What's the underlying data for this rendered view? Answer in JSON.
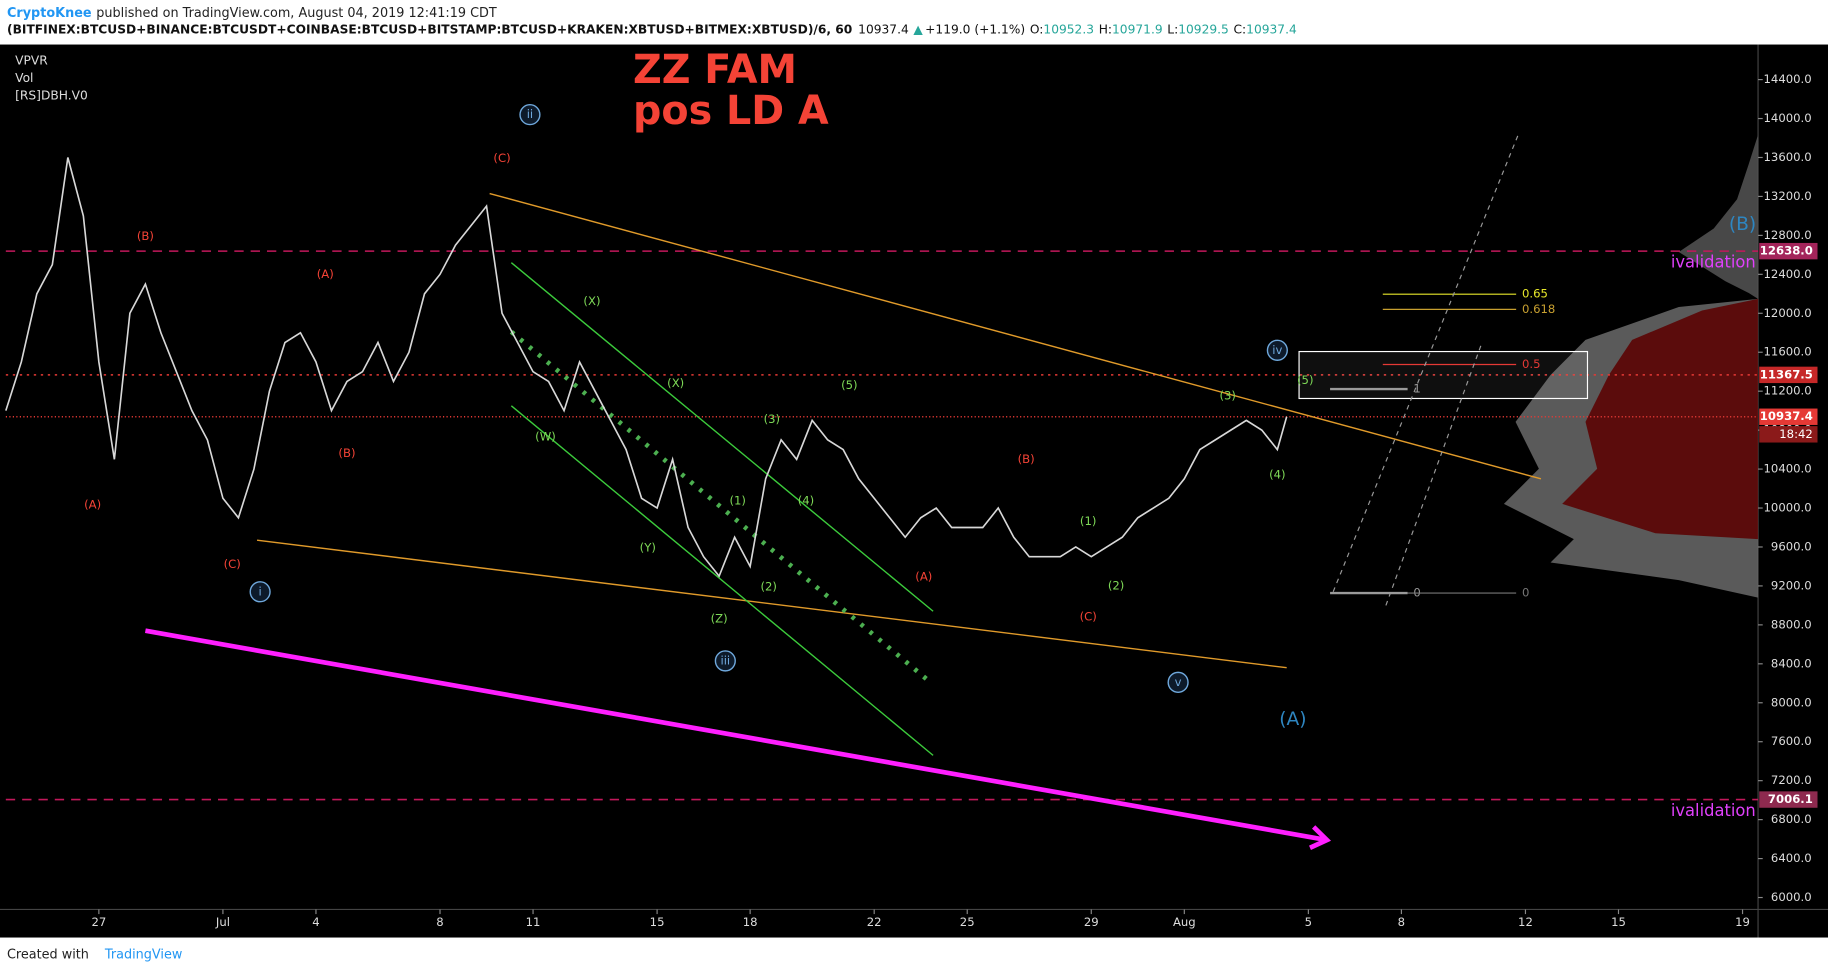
{
  "header": {
    "author": "CryptoKnee",
    "published": "published on TradingView.com, August 04, 2019 12:41:19 CDT",
    "symbol": "(BITFINEX:BTCUSD+BINANCE:BTCUSDT+COINBASE:BTCUSD+BITSTAMP:BTCUSD+KRAKEN:XBTUSD+BITMEX:XBTUSD)/6, 60",
    "last": "10937.4",
    "arrow": "▲",
    "change": "+119.0 (+1.1%)",
    "ohlc": [
      {
        "key": "O:",
        "value": "10952.3"
      },
      {
        "key": "H:",
        "value": "10971.9"
      },
      {
        "key": "L:",
        "value": "10929.5"
      },
      {
        "key": "C:",
        "value": "10937.4"
      }
    ]
  },
  "footer": {
    "created": "Created with",
    "brand": "TradingView"
  },
  "chart_data": {
    "type": "line",
    "title": "ZZ FAM",
    "subtitle": "pos LD A",
    "indicators": [
      "VPVR",
      "Vol",
      "[RS]DBH.V0"
    ],
    "xlim": [
      -6,
      50.5
    ],
    "ylim": [
      5890,
      14760
    ],
    "xticks": [
      {
        "value": -3,
        "label": "27"
      },
      {
        "value": 1,
        "label": "Jul"
      },
      4,
      8,
      11,
      15,
      18,
      22,
      25,
      29,
      {
        "value": 32,
        "label": "Aug"
      },
      {
        "value": 36,
        "label": "5"
      },
      {
        "value": 39,
        "label": "8"
      },
      {
        "value": 43,
        "label": "12"
      },
      {
        "value": 46,
        "label": "15"
      },
      {
        "value": 50,
        "label": "19"
      }
    ],
    "yticks": [
      {
        "value": 6000,
        "label": "6000.0"
      },
      {
        "value": 6400,
        "label": "6400.0"
      },
      {
        "value": 6800,
        "label": "6800.0"
      },
      {
        "value": 7200,
        "label": "7200.0"
      },
      {
        "value": 7600,
        "label": "7600.0"
      },
      {
        "value": 8000,
        "label": "8000.0"
      },
      {
        "value": 8400,
        "label": "8400.0"
      },
      {
        "value": 8800,
        "label": "8800.0"
      },
      {
        "value": 9200,
        "label": "9200.0"
      },
      {
        "value": 9600,
        "label": "9600.0"
      },
      {
        "value": 10000,
        "label": "10000.0"
      },
      {
        "value": 10400,
        "label": "10400.0"
      },
      {
        "value": 10800,
        "label": "10800.0"
      },
      {
        "value": 11200,
        "label": "11200.0"
      },
      {
        "value": 11600,
        "label": "11600.0"
      },
      {
        "value": 12000,
        "label": "12000.0"
      },
      {
        "value": 12400,
        "label": "12400.0"
      },
      {
        "value": 12800,
        "label": "12800.0"
      },
      {
        "value": 13200,
        "label": "13200.0"
      },
      {
        "value": 13600,
        "label": "13600.0"
      },
      {
        "value": 14000,
        "label": "14000.0"
      },
      {
        "value": 14400,
        "label": "14400.0"
      }
    ],
    "x": [
      -6,
      -5.5,
      -5,
      -4.5,
      -4,
      -3.5,
      -3,
      -2.5,
      -2,
      -1.5,
      -1,
      -0.5,
      0,
      0.5,
      1,
      1.5,
      2,
      2.5,
      3,
      3.5,
      4,
      4.5,
      5,
      5.5,
      6,
      6.5,
      7,
      7.5,
      8,
      8.5,
      9,
      9.5,
      10,
      10.5,
      11,
      11.5,
      12,
      12.5,
      13,
      13.5,
      14,
      14.5,
      15,
      15.5,
      16,
      16.5,
      17,
      17.5,
      18,
      18.5,
      19,
      19.5,
      20,
      20.5,
      21,
      21.5,
      22,
      22.5,
      23,
      23.5,
      24,
      24.5,
      25,
      25.5,
      26,
      26.5,
      27,
      27.5,
      28,
      28.5,
      29,
      29.5,
      30,
      30.5,
      31,
      31.5,
      32,
      32.5,
      33,
      33.5,
      34,
      34.5,
      35,
      35.3
    ],
    "series": [
      {
        "color": "#d8d8d8",
        "values": [
          11000,
          11500,
          12200,
          12500,
          13600,
          13000,
          11500,
          10500,
          12000,
          12300,
          11800,
          11400,
          11000,
          10700,
          10100,
          9900,
          10400,
          11200,
          11700,
          11800,
          11500,
          11000,
          11300,
          11400,
          11700,
          11300,
          11600,
          12200,
          12400,
          12700,
          12900,
          13100,
          12000,
          11700,
          11400,
          11300,
          11000,
          11500,
          11200,
          10900,
          10600,
          10100,
          10000,
          10500,
          9800,
          9500,
          9300,
          9700,
          9400,
          10300,
          10700,
          10500,
          10900,
          10700,
          10600,
          10300,
          10100,
          9900,
          9700,
          9900,
          10000,
          9800,
          9800,
          9800,
          10000,
          9700,
          9500,
          9500,
          9500,
          9600,
          9500,
          9600,
          9700,
          9900,
          10000,
          10100,
          10300,
          10600,
          10700,
          10800,
          10900,
          10800,
          10600,
          10937.4
        ]
      }
    ],
    "levels": [
      {
        "value": 12638,
        "label": "12638.0",
        "color": "#c2185b",
        "tag": "#a3245a",
        "dash": "8,6",
        "note": "ivalidation"
      },
      {
        "value": 11367.5,
        "label": "11367.5",
        "color": "#e53935",
        "tag": "#c62828",
        "dash": "2,4"
      },
      {
        "value": 10937.4,
        "label": "10937.4",
        "color": "#e53935",
        "tag": "#e53935",
        "dash": "1,2",
        "countdown": "18:42"
      },
      {
        "value": 7006.1,
        "label": "7006.1",
        "color": "#c2185b",
        "tag": "#8e2a4f",
        "dash": "8,6",
        "note": "ivalidation"
      }
    ],
    "lines": [
      {
        "x": [
          9.6,
          43.5
        ],
        "y": [
          13230,
          10300
        ],
        "color": "#e09a2a",
        "width": 1.2
      },
      {
        "x": [
          2.1,
          35.3
        ],
        "y": [
          9670,
          8360
        ],
        "color": "#e09a2a",
        "width": 1.2
      },
      {
        "x": [
          10.3,
          23.9
        ],
        "y": [
          12520,
          8940
        ],
        "color": "#3ccb3c",
        "width": 1.2
      },
      {
        "x": [
          10.3,
          23.9
        ],
        "y": [
          11050,
          7460
        ],
        "color": "#3ccb3c",
        "width": 1.2
      },
      {
        "x": [
          10.3,
          23.7
        ],
        "y": [
          11810,
          8240
        ],
        "color": "#4caf50",
        "width": 4,
        "dash": "3,7"
      },
      {
        "x": [
          -1.5,
          36.6
        ],
        "y": [
          8740,
          6590
        ],
        "color": "#ff1fff",
        "width": 4,
        "arrow": true
      },
      {
        "x": [
          36.8,
          42.8
        ],
        "y": [
          9140,
          13860
        ],
        "color": "#9a9a9a",
        "width": 1,
        "dash": "4,4"
      },
      {
        "x": [
          38.5,
          41.6
        ],
        "y": [
          9000,
          11700
        ],
        "color": "#9a9a9a",
        "width": 1,
        "dash": "4,4"
      }
    ],
    "fib_box": {
      "x": [
        35.7,
        45
      ],
      "y": [
        11607,
        11125
      ]
    },
    "fib_levels": [
      {
        "ratio": 0.65,
        "value": 12196,
        "x": [
          38.4,
          42.7
        ],
        "color": "#e8e82a"
      },
      {
        "ratio": 0.618,
        "value": 12040,
        "x": [
          38.4,
          42.7
        ],
        "color": "#c8a030"
      },
      {
        "ratio": 0.5,
        "value": 11474,
        "x": [
          38.4,
          42.7
        ],
        "color": "#e53935"
      },
      {
        "ratio": 1,
        "value": 11222,
        "x": [
          36.7,
          39.2
        ],
        "color": "#9a9a9a"
      },
      {
        "ratio": 0,
        "value": 9127,
        "x": [
          36.7,
          39.2
        ],
        "color": "#9a9a9a"
      },
      {
        "ratio": 0,
        "value": 9127,
        "x": [
          39.2,
          42.7
        ],
        "color": "#777777"
      }
    ],
    "wave_labels": [
      {
        "text": "(B)",
        "x": -1.5,
        "y": 12790,
        "color": "#f44336"
      },
      {
        "text": "(A)",
        "x": 4.3,
        "y": 12400,
        "color": "#f44336"
      },
      {
        "text": "(A)",
        "x": -3.2,
        "y": 10030,
        "color": "#f44336"
      },
      {
        "text": "(B)",
        "x": 5.0,
        "y": 10560,
        "color": "#f44336"
      },
      {
        "text": "(C)",
        "x": 1.3,
        "y": 9420,
        "color": "#f44336"
      },
      {
        "text": "(C)",
        "x": 10.0,
        "y": 13590,
        "color": "#f44336"
      },
      {
        "text": "(A)",
        "x": 23.6,
        "y": 9290,
        "color": "#f44336"
      },
      {
        "text": "(B)",
        "x": 26.9,
        "y": 10500,
        "color": "#f44336"
      },
      {
        "text": "(C)",
        "x": 28.9,
        "y": 8880,
        "color": "#f44336"
      },
      {
        "text": "(X)",
        "x": 12.9,
        "y": 12120,
        "color": "#7ed957"
      },
      {
        "text": "(X)",
        "x": 15.6,
        "y": 11280,
        "color": "#7ed957"
      },
      {
        "text": "(W)",
        "x": 11.4,
        "y": 10730,
        "color": "#7ed957"
      },
      {
        "text": "(Y)",
        "x": 14.7,
        "y": 9590,
        "color": "#7ed957"
      },
      {
        "text": "(Z)",
        "x": 17.0,
        "y": 8860,
        "color": "#7ed957"
      },
      {
        "text": "(5)",
        "x": 21.2,
        "y": 11260,
        "color": "#7ed957"
      },
      {
        "text": "(3)",
        "x": 18.7,
        "y": 10910,
        "color": "#7ed957"
      },
      {
        "text": "(4)",
        "x": 19.8,
        "y": 10070,
        "color": "#7ed957"
      },
      {
        "text": "(1)",
        "x": 17.6,
        "y": 10070,
        "color": "#7ed957"
      },
      {
        "text": "(2)",
        "x": 18.6,
        "y": 9190,
        "color": "#7ed957"
      },
      {
        "text": "(1)",
        "x": 28.9,
        "y": 9860,
        "color": "#7ed957"
      },
      {
        "text": "(2)",
        "x": 29.8,
        "y": 9200,
        "color": "#7ed957"
      },
      {
        "text": "(3)",
        "x": 33.4,
        "y": 11150,
        "color": "#7ed957"
      },
      {
        "text": "(4)",
        "x": 35.0,
        "y": 10340,
        "color": "#7ed957"
      },
      {
        "text": "(5)",
        "x": 35.9,
        "y": 11310,
        "color": "#7ed957"
      },
      {
        "text": "i",
        "x": 2.2,
        "y": 9140,
        "color": "#6fa8dc",
        "circled": true
      },
      {
        "text": "ii",
        "x": 10.9,
        "y": 14040,
        "color": "#6fa8dc",
        "circled": true
      },
      {
        "text": "iii",
        "x": 17.2,
        "y": 8430,
        "color": "#6fa8dc",
        "circled": true
      },
      {
        "text": "iv",
        "x": 35.0,
        "y": 11620,
        "color": "#6fa8dc",
        "circled": true
      },
      {
        "text": "v",
        "x": 31.8,
        "y": 8210,
        "color": "#6fa8dc",
        "circled": true
      },
      {
        "text": "(A)",
        "x": 35.5,
        "y": 7830,
        "color": "#2e86c1",
        "big": true
      },
      {
        "text": "(B)",
        "x": 50.0,
        "y": 12910,
        "color": "#2e86c1",
        "big": true
      }
    ]
  }
}
